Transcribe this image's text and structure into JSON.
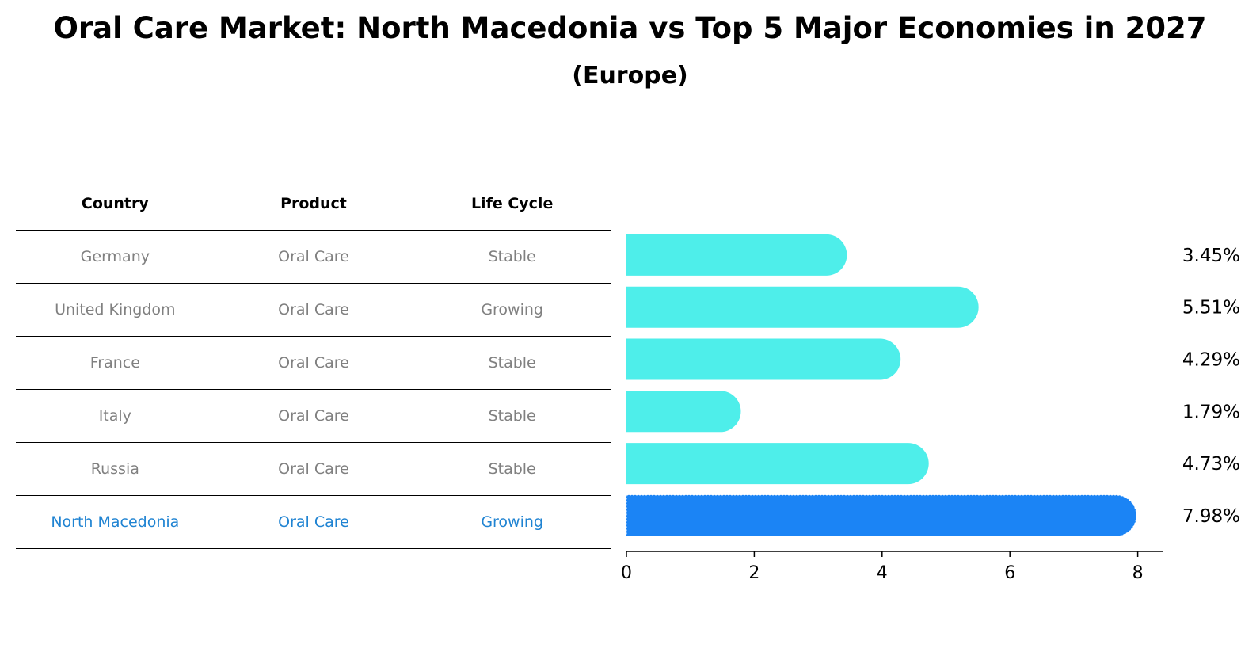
{
  "title": "Oral Care Market: North Macedonia vs Top 5 Major Economies in 2027",
  "subtitle": "(Europe)",
  "table": {
    "headers": [
      "Country",
      "Product",
      "Life Cycle"
    ],
    "rows": [
      [
        "Germany",
        "Oral Care",
        "Stable"
      ],
      [
        "United Kingdom",
        "Oral Care",
        "Growing"
      ],
      [
        "France",
        "Oral Care",
        "Stable"
      ],
      [
        "Italy",
        "Oral Care",
        "Stable"
      ],
      [
        "Russia",
        "Oral Care",
        "Stable"
      ],
      [
        "North Macedonia",
        "Oral Care",
        "Growing"
      ]
    ],
    "highlight_row": 5
  },
  "colors": {
    "bar": "#4eeeea",
    "highlight_bar": "#1b84f5",
    "text_muted": "#808080",
    "highlight_text": "#1f83d2"
  },
  "chart_data": {
    "type": "bar",
    "orientation": "horizontal",
    "categories": [
      "Germany",
      "United Kingdom",
      "France",
      "Italy",
      "Russia",
      "North Macedonia"
    ],
    "values": [
      3.45,
      5.51,
      4.29,
      1.79,
      4.73,
      7.98
    ],
    "value_labels": [
      "3.45%",
      "5.51%",
      "4.29%",
      "1.79%",
      "4.73%",
      "7.98%"
    ],
    "xlim": [
      0,
      8.4
    ],
    "xticks": [
      0,
      2,
      4,
      6,
      8
    ],
    "grid": false,
    "highlight_index": 5
  }
}
